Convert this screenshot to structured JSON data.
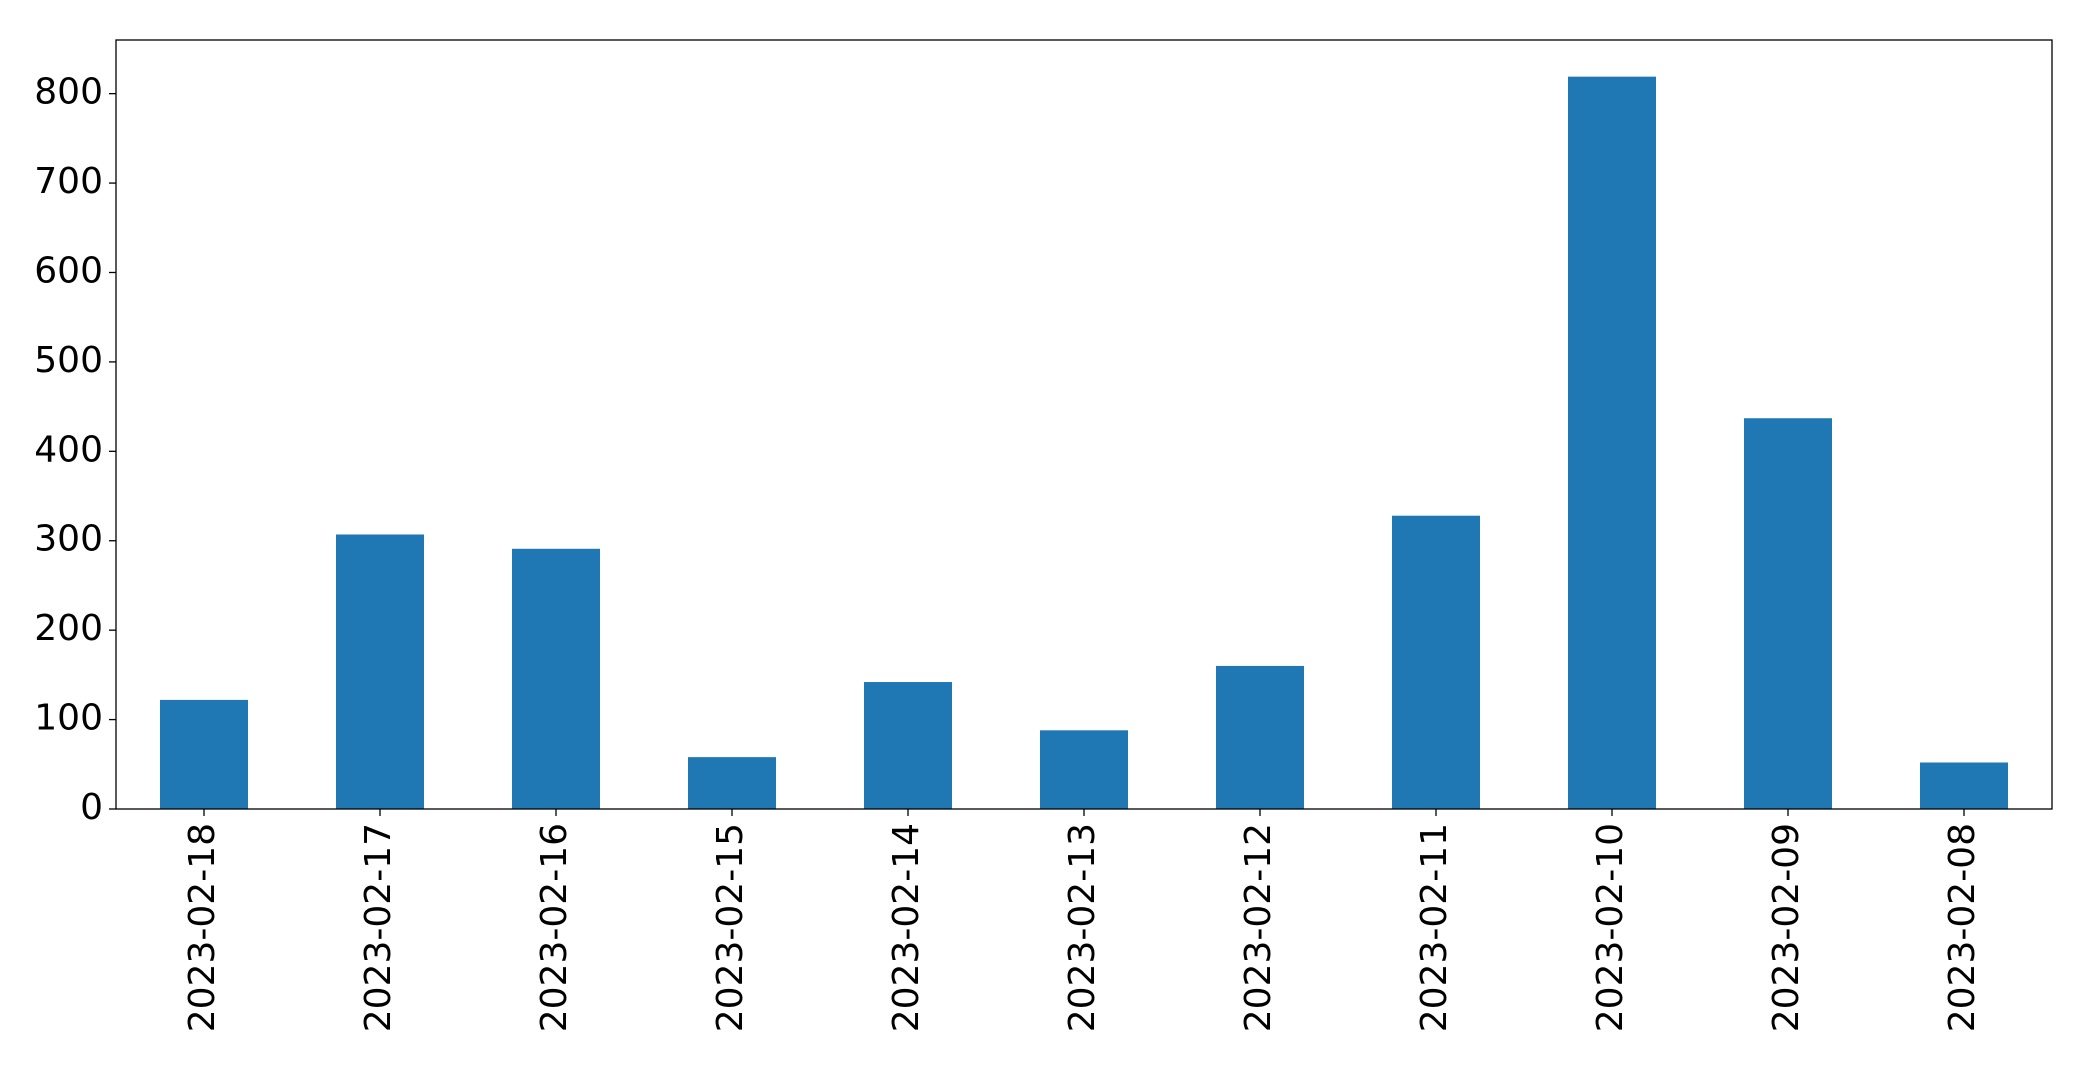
{
  "chart_data": {
    "type": "bar",
    "categories": [
      "2023-02-18",
      "2023-02-17",
      "2023-02-16",
      "2023-02-15",
      "2023-02-14",
      "2023-02-13",
      "2023-02-12",
      "2023-02-11",
      "2023-02-10",
      "2023-02-09",
      "2023-02-08"
    ],
    "values": [
      122,
      307,
      291,
      58,
      142,
      88,
      160,
      328,
      819,
      437,
      52
    ],
    "color": "#1f77b4",
    "ylim": [
      0,
      860
    ],
    "yticks": [
      0,
      100,
      200,
      300,
      400,
      500,
      600,
      700,
      800
    ],
    "grid": false
  }
}
